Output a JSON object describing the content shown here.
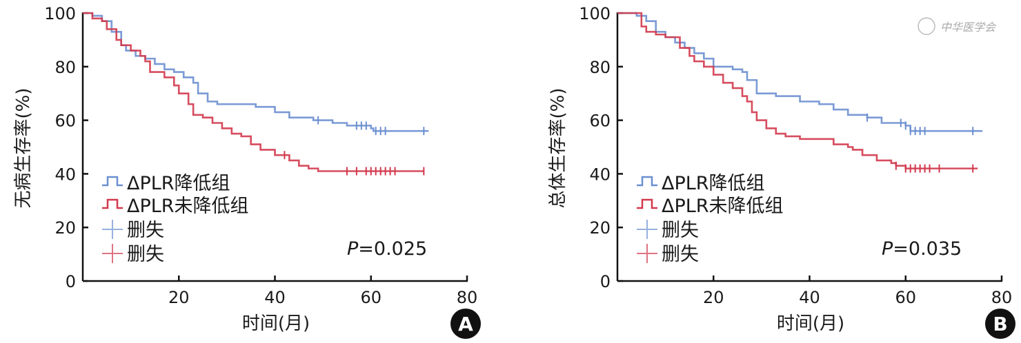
{
  "chart_data": [
    {
      "type": "line",
      "panel_label": "A",
      "ylabel": "无病生存率(%)",
      "xlabel": "时间(月)",
      "xlim": [
        0,
        80
      ],
      "ylim": [
        0,
        100
      ],
      "xticks": [
        "20",
        "40",
        "60",
        "80"
      ],
      "yticks": [
        "0",
        "20",
        "40",
        "60",
        "80",
        "100"
      ],
      "annotation": {
        "p_label": "P",
        "p_value": "=0.025"
      },
      "legend": [
        "ΔPLR降低组",
        "ΔPLR未降低组",
        "删失",
        "删失"
      ],
      "series": [
        {
          "name": "ΔPLR降低组",
          "color": "#6b8fd0",
          "steps": [
            [
              0,
              100
            ],
            [
              2,
              99
            ],
            [
              4,
              97
            ],
            [
              6,
              93
            ],
            [
              8,
              88
            ],
            [
              9,
              86
            ],
            [
              11,
              84
            ],
            [
              13,
              83
            ],
            [
              15,
              81
            ],
            [
              17,
              79
            ],
            [
              19,
              78
            ],
            [
              21,
              76
            ],
            [
              23,
              74
            ],
            [
              24,
              70
            ],
            [
              26,
              67
            ],
            [
              28,
              66
            ],
            [
              34,
              66
            ],
            [
              36,
              65
            ],
            [
              40,
              63
            ],
            [
              43,
              61
            ],
            [
              48,
              60
            ],
            [
              52,
              59
            ],
            [
              55,
              58
            ],
            [
              60,
              57
            ],
            [
              60.5,
              56
            ],
            [
              72,
              56
            ]
          ],
          "censored": [
            49,
            57,
            58,
            59,
            61,
            62,
            63,
            71
          ]
        },
        {
          "name": "ΔPLR未降低组",
          "color": "#d2384d",
          "steps": [
            [
              0,
              100
            ],
            [
              2,
              98
            ],
            [
              4,
              97
            ],
            [
              5,
              94
            ],
            [
              7,
              90
            ],
            [
              8,
              88
            ],
            [
              10,
              86
            ],
            [
              12,
              84
            ],
            [
              13,
              82
            ],
            [
              14,
              78
            ],
            [
              17,
              76
            ],
            [
              19,
              73
            ],
            [
              20,
              70
            ],
            [
              22,
              66
            ],
            [
              23,
              62
            ],
            [
              25,
              61
            ],
            [
              27,
              59
            ],
            [
              29,
              57
            ],
            [
              31,
              55
            ],
            [
              33,
              54
            ],
            [
              35,
              51
            ],
            [
              37,
              49
            ],
            [
              40,
              47
            ],
            [
              43,
              45
            ],
            [
              45,
              43
            ],
            [
              47,
              42
            ],
            [
              49,
              41
            ],
            [
              71,
              41
            ]
          ],
          "censored": [
            42,
            55,
            57,
            59,
            60,
            61,
            62,
            63,
            64,
            65,
            71
          ]
        }
      ]
    },
    {
      "type": "line",
      "panel_label": "B",
      "ylabel": "总体生存率(%)",
      "xlabel": "时间(月)",
      "xlim": [
        0,
        80
      ],
      "ylim": [
        0,
        100
      ],
      "xticks": [
        "20",
        "40",
        "60",
        "80"
      ],
      "yticks": [
        "0",
        "20",
        "40",
        "60",
        "80",
        "100"
      ],
      "annotation": {
        "p_label": "P",
        "p_value": "=0.035"
      },
      "legend": [
        "ΔPLR降低组",
        "ΔPLR未降低组",
        "删失",
        "删失"
      ],
      "watermark": "中华医学会",
      "series": [
        {
          "name": "ΔPLR降低组",
          "color": "#6b8fd0",
          "steps": [
            [
              0,
              100
            ],
            [
              4,
              99
            ],
            [
              6,
              97
            ],
            [
              8,
              93
            ],
            [
              10,
              91
            ],
            [
              12,
              89
            ],
            [
              14,
              87
            ],
            [
              16,
              85
            ],
            [
              18,
              83
            ],
            [
              20,
              80
            ],
            [
              24,
              79
            ],
            [
              26,
              78
            ],
            [
              27,
              75
            ],
            [
              29,
              70
            ],
            [
              33,
              69
            ],
            [
              38,
              67
            ],
            [
              42,
              66
            ],
            [
              45,
              64
            ],
            [
              48,
              62
            ],
            [
              52,
              61
            ],
            [
              55,
              59
            ],
            [
              60,
              58
            ],
            [
              61,
              56
            ],
            [
              76,
              56
            ]
          ],
          "censored": [
            52,
            59,
            60,
            61,
            62,
            63,
            64,
            74
          ]
        },
        {
          "name": "ΔPLR未降低组",
          "color": "#d2384d",
          "steps": [
            [
              0,
              100
            ],
            [
              4,
              100
            ],
            [
              5,
              95
            ],
            [
              6,
              93
            ],
            [
              8,
              92
            ],
            [
              10,
              91
            ],
            [
              13,
              87
            ],
            [
              15,
              84
            ],
            [
              16,
              82
            ],
            [
              18,
              80
            ],
            [
              20,
              77
            ],
            [
              22,
              74
            ],
            [
              24,
              72
            ],
            [
              26,
              69
            ],
            [
              27,
              67
            ],
            [
              28,
              63
            ],
            [
              29,
              60
            ],
            [
              31,
              57
            ],
            [
              33,
              55
            ],
            [
              35,
              54
            ],
            [
              38,
              53
            ],
            [
              43,
              53
            ],
            [
              45,
              51
            ],
            [
              48,
              50
            ],
            [
              49,
              49
            ],
            [
              51,
              47
            ],
            [
              54,
              45
            ],
            [
              57,
              44
            ],
            [
              58,
              43
            ],
            [
              60,
              42
            ],
            [
              75,
              42
            ]
          ],
          "censored": [
            58,
            60,
            61,
            62,
            63,
            64,
            65,
            67,
            74
          ]
        }
      ]
    }
  ]
}
